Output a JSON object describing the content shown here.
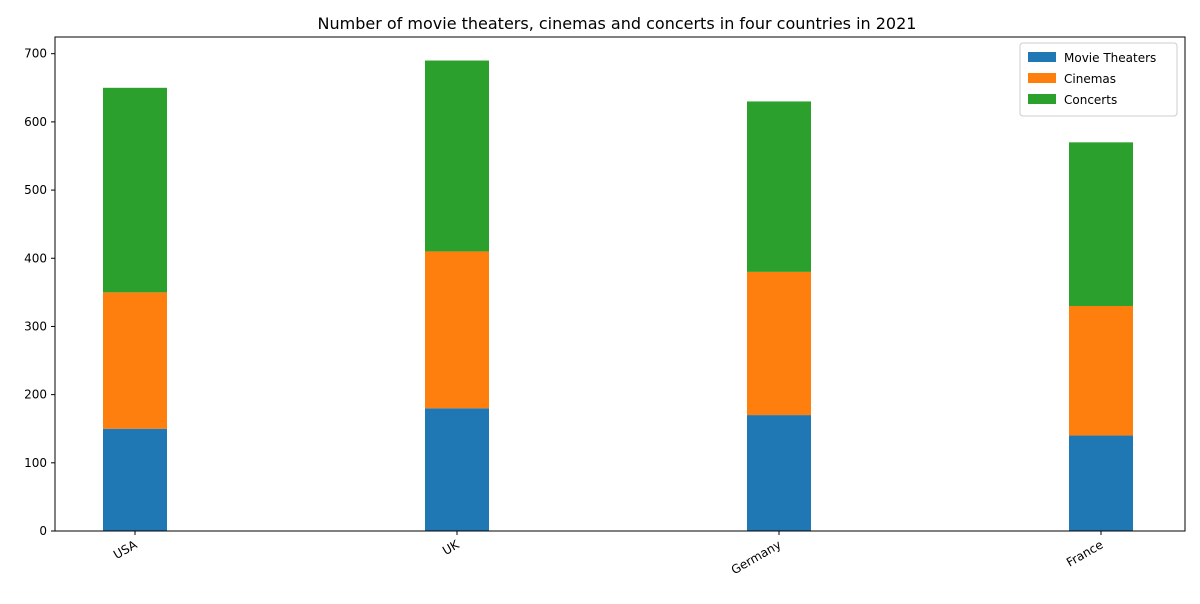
{
  "chart_data": {
    "type": "bar",
    "stacked": true,
    "title": "Number of movie theaters, cinemas and concerts in four countries in 2021",
    "xlabel": "",
    "ylabel": "",
    "categories": [
      "USA",
      "UK",
      "Germany",
      "France"
    ],
    "series": [
      {
        "name": "Movie Theaters",
        "color": "#1f77b4",
        "values": [
          150,
          180,
          170,
          140
        ]
      },
      {
        "name": "Cinemas",
        "color": "#ff7f0e",
        "values": [
          200,
          230,
          210,
          190
        ]
      },
      {
        "name": "Concerts",
        "color": "#2ca02c",
        "values": [
          300,
          280,
          250,
          240
        ]
      }
    ],
    "ylim": [
      0,
      724.5
    ],
    "yticks": [
      0,
      100,
      200,
      300,
      400,
      500,
      600,
      700
    ],
    "x_tick_rotation": 30,
    "grid": false,
    "legend_position": "upper right"
  }
}
